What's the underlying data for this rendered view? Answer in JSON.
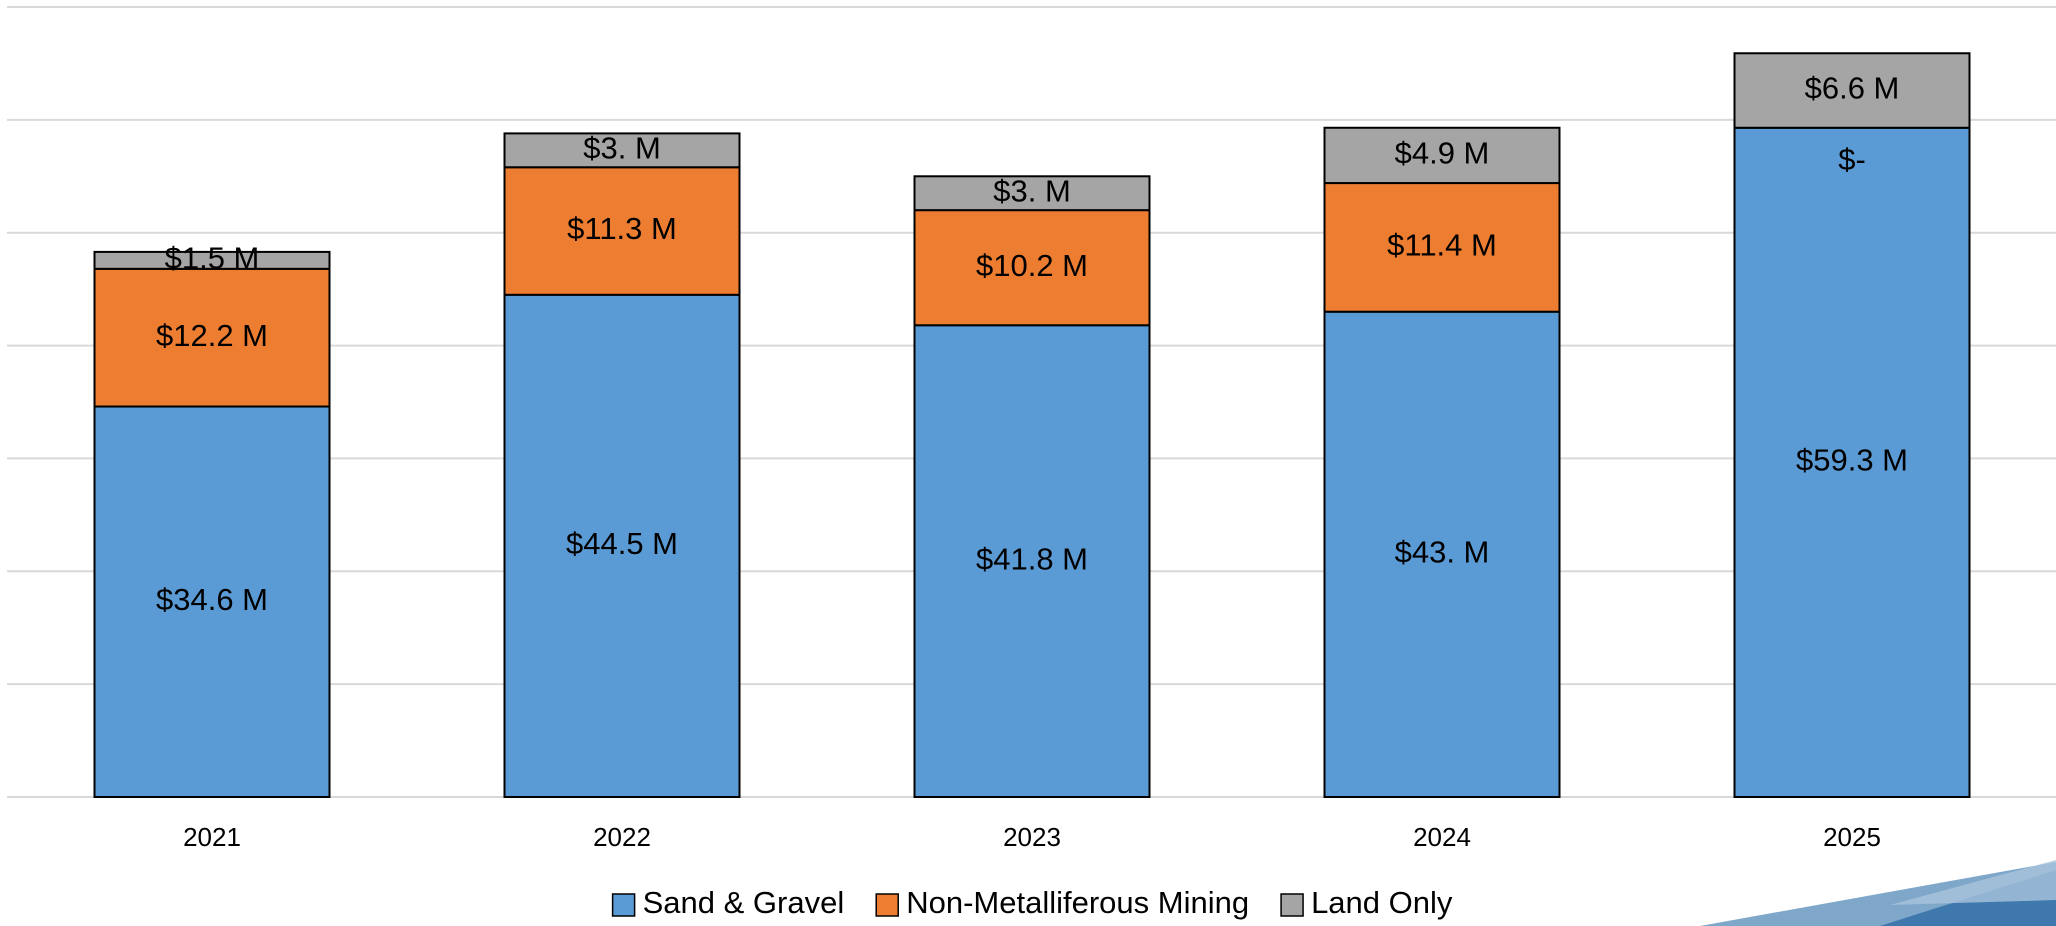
{
  "chart_data": {
    "type": "bar",
    "stacked": true,
    "categories": [
      "2021",
      "2022",
      "2023",
      "2024",
      "2025"
    ],
    "series": [
      {
        "name": "Sand & Gravel",
        "color": "#5b9bd5",
        "values": [
          34.6,
          44.5,
          41.8,
          43.0,
          59.3
        ],
        "value_labels": [
          "$34.6 M",
          "$44.5 M",
          "$41.8 M",
          "$43. M",
          "$59.3 M"
        ]
      },
      {
        "name": "Non-Metalliferous Mining",
        "color": "#ed7d31",
        "values": [
          12.2,
          11.3,
          10.2,
          11.4,
          0
        ],
        "value_labels": [
          "$12.2 M",
          "$11.3 M",
          "$10.2 M",
          "$11.4 M",
          "$-"
        ]
      },
      {
        "name": "Land Only",
        "color": "#a5a5a5",
        "values": [
          1.5,
          3.0,
          3.0,
          4.9,
          6.6
        ],
        "value_labels": [
          "$1.5 M",
          "$3. M",
          "$3. M",
          "$4.9 M",
          "$6.6 M"
        ]
      }
    ],
    "ylim": [
      0,
      70
    ],
    "yticks": [
      0,
      10,
      20,
      30,
      40,
      50,
      60,
      70
    ],
    "grid": true,
    "legend": "bottom"
  }
}
